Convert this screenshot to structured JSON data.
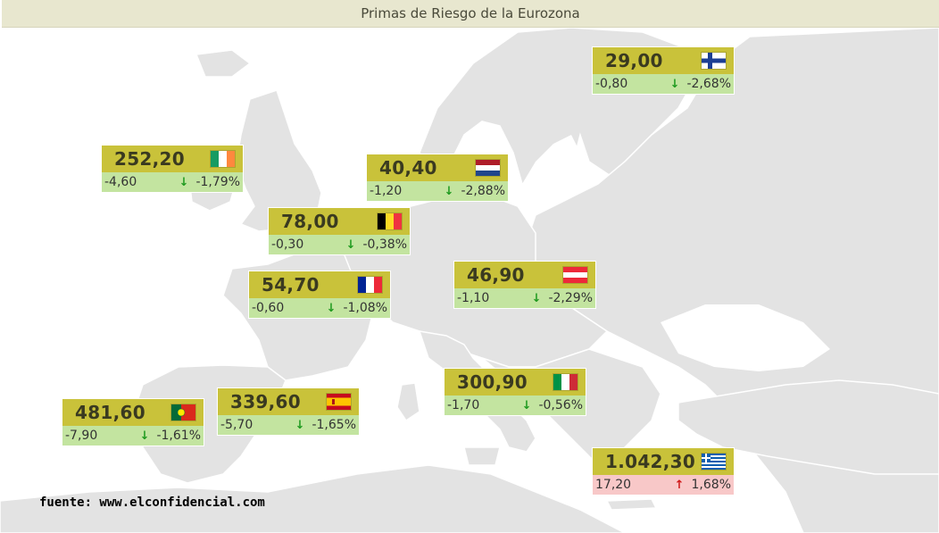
{
  "title": "Primas de Riesgo de la Eurozona",
  "source": "fuente: www.elconfidencial.com",
  "colors": {
    "land": "#e3e3e3",
    "sea": "#ffffff",
    "header": "#c9c23a",
    "down_bg": "#c3e4a0",
    "up_bg": "#f8c8c8",
    "down_arrow": "#1f9a1f",
    "up_arrow": "#d01818"
  },
  "countries": [
    {
      "id": "finland",
      "flag": "finland-flag-icon",
      "value": "29,00",
      "change": "-0,80",
      "pct": "-2,68%",
      "dir": "down"
    },
    {
      "id": "ireland",
      "flag": "ireland-flag-icon",
      "value": "252,20",
      "change": "-4,60",
      "pct": "-1,79%",
      "dir": "down"
    },
    {
      "id": "netherlands",
      "flag": "netherlands-flag-icon",
      "value": "40,40",
      "change": "-1,20",
      "pct": "-2,88%",
      "dir": "down"
    },
    {
      "id": "belgium",
      "flag": "belgium-flag-icon",
      "value": "78,00",
      "change": "-0,30",
      "pct": "-0,38%",
      "dir": "down"
    },
    {
      "id": "austria",
      "flag": "austria-flag-icon",
      "value": "46,90",
      "change": "-1,10",
      "pct": "-2,29%",
      "dir": "down"
    },
    {
      "id": "france",
      "flag": "france-flag-icon",
      "value": "54,70",
      "change": "-0,60",
      "pct": "-1,08%",
      "dir": "down"
    },
    {
      "id": "italy",
      "flag": "italy-flag-icon",
      "value": "300,90",
      "change": "-1,70",
      "pct": "-0,56%",
      "dir": "down"
    },
    {
      "id": "spain",
      "flag": "spain-flag-icon",
      "value": "339,60",
      "change": "-5,70",
      "pct": "-1,65%",
      "dir": "down"
    },
    {
      "id": "portugal",
      "flag": "portugal-flag-icon",
      "value": "481,60",
      "change": "-7,90",
      "pct": "-1,61%",
      "dir": "down"
    },
    {
      "id": "greece",
      "flag": "greece-flag-icon",
      "value": "1.042,30",
      "change": "17,20",
      "pct": "1,68%",
      "dir": "up"
    }
  ]
}
